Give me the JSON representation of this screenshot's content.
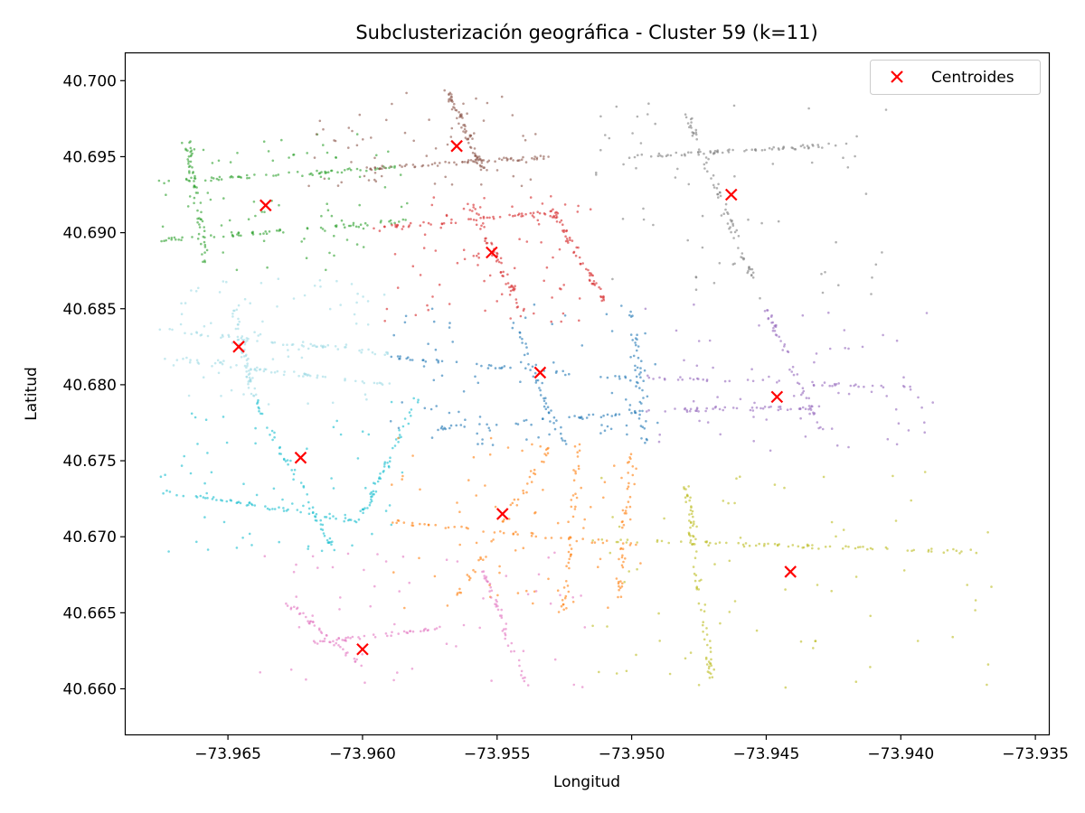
{
  "chart_data": {
    "type": "scatter",
    "title": "Subclusterización geográfica - Cluster 59 (k=11)",
    "xlabel": "Longitud",
    "ylabel": "Latitud",
    "xlim": [
      -73.9688,
      -73.9345
    ],
    "ylim": [
      40.657,
      40.7018
    ],
    "xticks": [
      -73.965,
      -73.96,
      -73.955,
      -73.95,
      -73.945,
      -73.94,
      -73.935
    ],
    "xtick_labels": [
      "−73.965",
      "−73.960",
      "−73.955",
      "−73.950",
      "−73.945",
      "−73.940",
      "−73.935"
    ],
    "yticks": [
      40.66,
      40.665,
      40.67,
      40.675,
      40.68,
      40.685,
      40.69,
      40.695,
      40.7
    ],
    "ytick_labels": [
      "40.660",
      "40.665",
      "40.670",
      "40.675",
      "40.680",
      "40.685",
      "40.690",
      "40.695",
      "40.700"
    ],
    "grid": false,
    "legend": {
      "placement": "top-right",
      "entries": [
        "Centroides"
      ]
    },
    "centroid_color": "#ff0000",
    "centroids": [
      {
        "x": -73.9636,
        "y": 40.6918
      },
      {
        "x": -73.9565,
        "y": 40.6957
      },
      {
        "x": -73.9463,
        "y": 40.6925
      },
      {
        "x": -73.9552,
        "y": 40.6887
      },
      {
        "x": -73.9646,
        "y": 40.6825
      },
      {
        "x": -73.9534,
        "y": 40.6808
      },
      {
        "x": -73.9446,
        "y": 40.6792
      },
      {
        "x": -73.9623,
        "y": 40.6752
      },
      {
        "x": -73.9548,
        "y": 40.6715
      },
      {
        "x": -73.9441,
        "y": 40.6677
      },
      {
        "x": -73.96,
        "y": 40.6626
      }
    ],
    "clusters": [
      {
        "color": "#2ca02c",
        "x_range": [
          -73.9675,
          -73.9583
        ],
        "y_range": [
          40.6875,
          40.6965
        ],
        "count": 260,
        "lines": [
          [
            -73.9675,
            40.6933,
            -73.9588,
            40.6943
          ],
          [
            -73.9675,
            40.6895,
            -73.9583,
            40.6908
          ],
          [
            -73.9658,
            40.688,
            -73.9665,
            40.696
          ]
        ]
      },
      {
        "color": "#8c564b",
        "x_range": [
          -73.962,
          -73.953
        ],
        "y_range": [
          40.693,
          40.6995
        ],
        "count": 200,
        "lines": [
          [
            -73.96,
            40.6942,
            -73.953,
            40.695
          ],
          [
            -73.9568,
            40.6992,
            -73.9555,
            40.694
          ]
        ]
      },
      {
        "color": "#7f7f7f",
        "x_range": [
          -73.9515,
          -73.9405
        ],
        "y_range": [
          40.6855,
          40.6985
        ],
        "count": 200,
        "lines": [
          [
            -73.95,
            40.695,
            -73.942,
            40.6958
          ],
          [
            -73.948,
            40.698,
            -73.9455,
            40.687
          ]
        ]
      },
      {
        "color": "#d62728",
        "x_range": [
          -73.9595,
          -73.9515
        ],
        "y_range": [
          40.684,
          40.6925
        ],
        "count": 240,
        "lines": [
          [
            -73.9595,
            40.6903,
            -73.952,
            40.6915
          ],
          [
            -73.956,
            40.692,
            -73.954,
            40.6845
          ],
          [
            -73.953,
            40.6915,
            -73.951,
            40.6855
          ]
        ]
      },
      {
        "color": "#9edae5",
        "x_range": [
          -73.9675,
          -73.959
        ],
        "y_range": [
          40.6785,
          40.687
        ],
        "count": 230,
        "lines": [
          [
            -73.9675,
            40.6836,
            -73.9588,
            40.682
          ],
          [
            -73.9675,
            40.6818,
            -73.959,
            40.68
          ],
          [
            -73.9648,
            40.685,
            -73.964,
            40.679
          ]
        ]
      },
      {
        "color": "#1f77b4",
        "x_range": [
          -73.959,
          -73.949
        ],
        "y_range": [
          40.6755,
          40.6855
        ],
        "count": 240,
        "lines": [
          [
            -73.959,
            40.6818,
            -73.9495,
            40.6803
          ],
          [
            -73.958,
            40.677,
            -73.9495,
            40.6782
          ],
          [
            -73.9545,
            40.6845,
            -73.9525,
            40.676
          ],
          [
            -73.95,
            40.685,
            -73.9495,
            40.676
          ]
        ]
      },
      {
        "color": "#9467bd",
        "x_range": [
          -73.9495,
          -73.9385
        ],
        "y_range": [
          40.6755,
          40.6855
        ],
        "count": 200,
        "lines": [
          [
            -73.9495,
            40.6805,
            -73.9395,
            40.6798
          ],
          [
            -73.9495,
            40.6783,
            -73.943,
            40.6785
          ],
          [
            -73.945,
            40.685,
            -73.943,
            40.677
          ]
        ]
      },
      {
        "color": "#17becf",
        "x_range": [
          -73.9675,
          -73.9585
        ],
        "y_range": [
          40.669,
          40.679
        ],
        "count": 220,
        "lines": [
          [
            -73.9675,
            40.673,
            -73.96,
            40.671
          ],
          [
            -73.964,
            40.679,
            -73.961,
            40.669
          ],
          [
            -73.96,
            40.6715,
            -73.958,
            40.679
          ]
        ]
      },
      {
        "color": "#ff7f0e",
        "x_range": [
          -73.959,
          -73.9495
        ],
        "y_range": [
          40.665,
          40.6765
        ],
        "count": 240,
        "lines": [
          [
            -73.959,
            40.671,
            -73.95,
            40.6695
          ],
          [
            -73.9565,
            40.666,
            -73.953,
            40.676
          ],
          [
            -73.9525,
            40.665,
            -73.952,
            40.676
          ],
          [
            -73.9505,
            40.666,
            -73.95,
            40.6755
          ]
        ]
      },
      {
        "color": "#bcbd22",
        "x_range": [
          -73.9515,
          -73.9365
        ],
        "y_range": [
          40.6595,
          40.6745
        ],
        "count": 220,
        "lines": [
          [
            -73.9515,
            40.6698,
            -73.937,
            40.669
          ],
          [
            -73.948,
            40.6735,
            -73.947,
            40.6605
          ]
        ]
      },
      {
        "color": "#e377c2",
        "x_range": [
          -73.964,
          -73.951
        ],
        "y_range": [
          40.66,
          40.669
        ],
        "count": 180,
        "lines": [
          [
            -73.963,
            40.666,
            -73.96,
            40.6615
          ],
          [
            -73.962,
            40.663,
            -73.957,
            40.664
          ],
          [
            -73.9555,
            40.668,
            -73.954,
            40.6605
          ]
        ]
      }
    ]
  }
}
